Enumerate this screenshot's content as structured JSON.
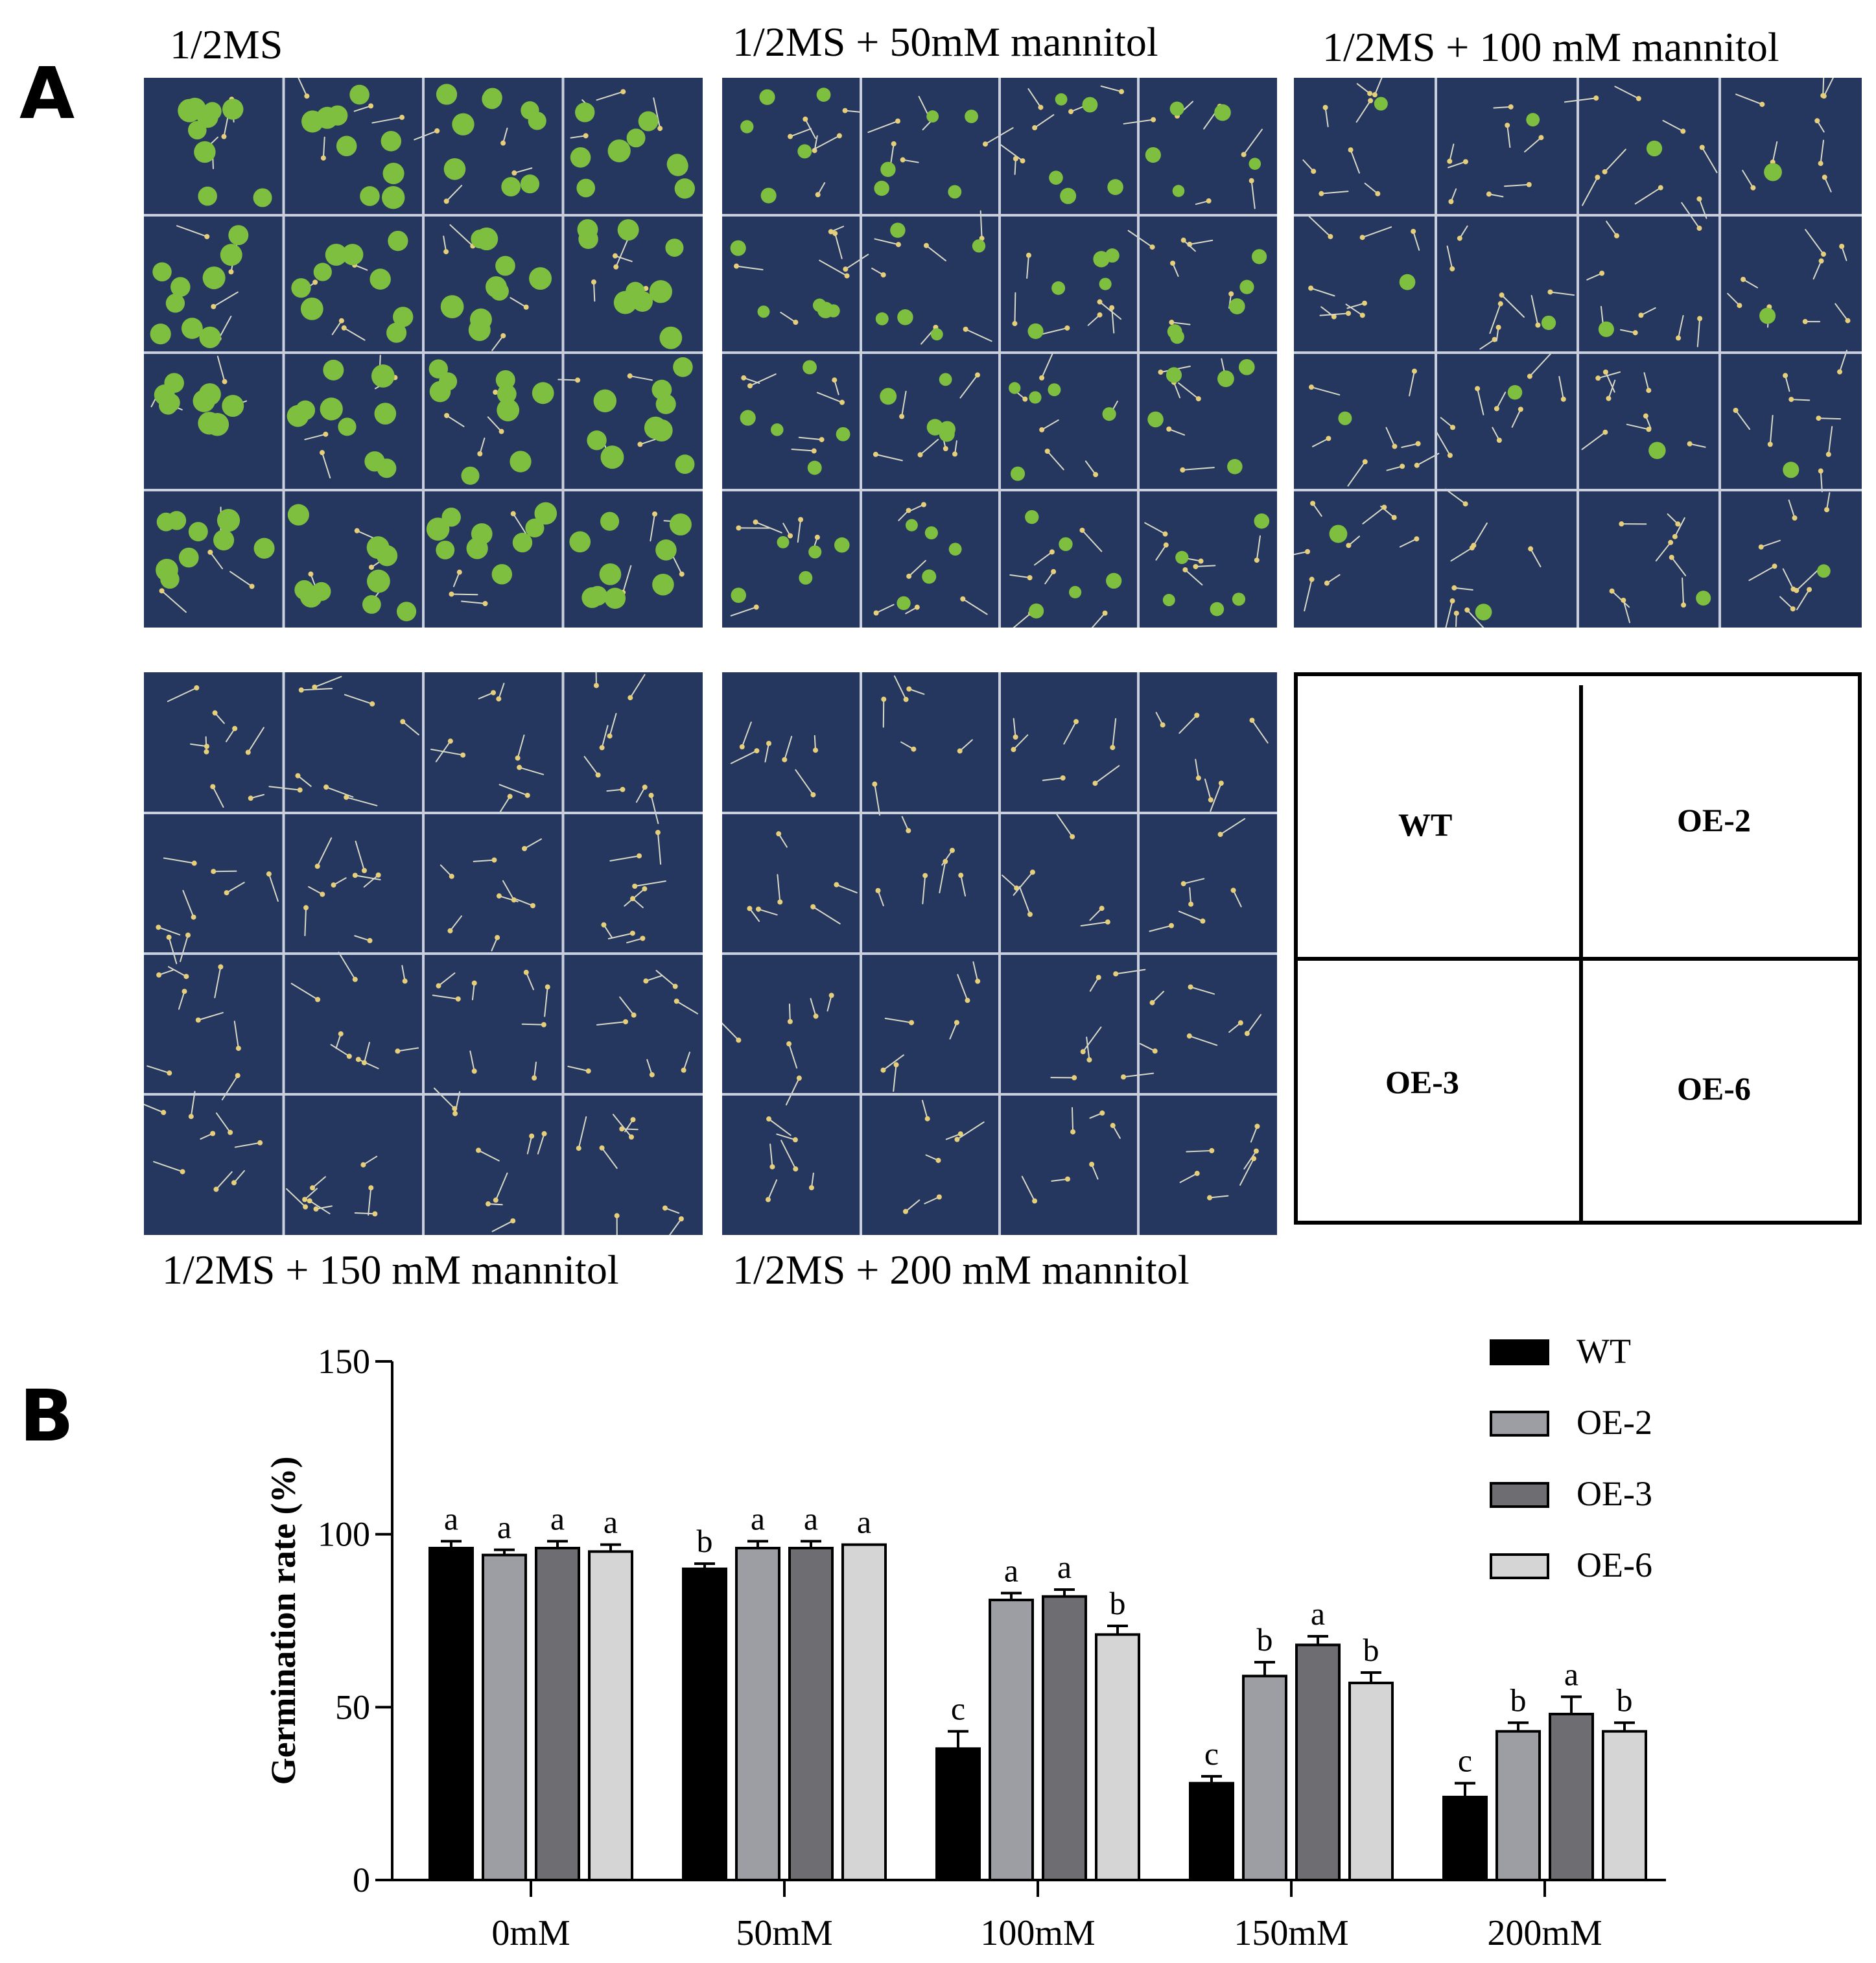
{
  "figure": {
    "panel_a_label": "A",
    "panel_b_label": "B"
  },
  "plates": [
    {
      "title": "1/2MS"
    },
    {
      "title": "1/2MS + 50mM mannitol"
    },
    {
      "title": "1/2MS + 100 mM mannitol"
    },
    {
      "title": "1/2MS + 150 mM mannitol"
    },
    {
      "title": "1/2MS + 200 mM mannitol"
    }
  ],
  "layout_key": {
    "top_left": "WT",
    "top_right": "OE-2",
    "bottom_left": "OE-3",
    "bottom_right": "OE-6"
  },
  "colors": {
    "plate_background": "#26375f",
    "grid_lines": "#c9cfdc",
    "seedling_green": "#7fbf3f",
    "WT": "#000000",
    "OE-2": "#9d9da4",
    "OE-3": "#6e6e72",
    "OE-6": "#d5d5d6"
  },
  "chart_data": {
    "type": "bar",
    "xlabel": "",
    "ylabel": "Germination rate (%)",
    "ylim": [
      0,
      150
    ],
    "yticks": [
      0,
      50,
      100,
      150
    ],
    "grid": false,
    "legend_position": "top-right",
    "categories": [
      "0mM",
      "50mM",
      "100mM",
      "150mM",
      "200mM"
    ],
    "series": [
      {
        "name": "WT",
        "values": [
          96,
          90,
          38,
          28,
          24
        ],
        "errors": [
          2,
          1.5,
          5,
          2,
          4
        ],
        "letters": [
          "a",
          "b",
          "c",
          "c",
          "c"
        ]
      },
      {
        "name": "OE-2",
        "values": [
          94,
          96,
          81,
          59,
          43
        ],
        "errors": [
          1.5,
          2,
          2,
          4,
          2.5
        ],
        "letters": [
          "a",
          "a",
          "a",
          "b",
          "b"
        ]
      },
      {
        "name": "OE-3",
        "values": [
          96,
          96,
          82,
          68,
          48
        ],
        "errors": [
          2,
          2,
          2,
          2.5,
          5
        ],
        "letters": [
          "a",
          "a",
          "a",
          "a",
          "a"
        ]
      },
      {
        "name": "OE-6",
        "values": [
          95,
          97,
          71,
          57,
          43
        ],
        "errors": [
          2,
          0,
          2.5,
          3,
          2.5
        ],
        "letters": [
          "a",
          "a",
          "b",
          "b",
          "b"
        ]
      }
    ]
  }
}
